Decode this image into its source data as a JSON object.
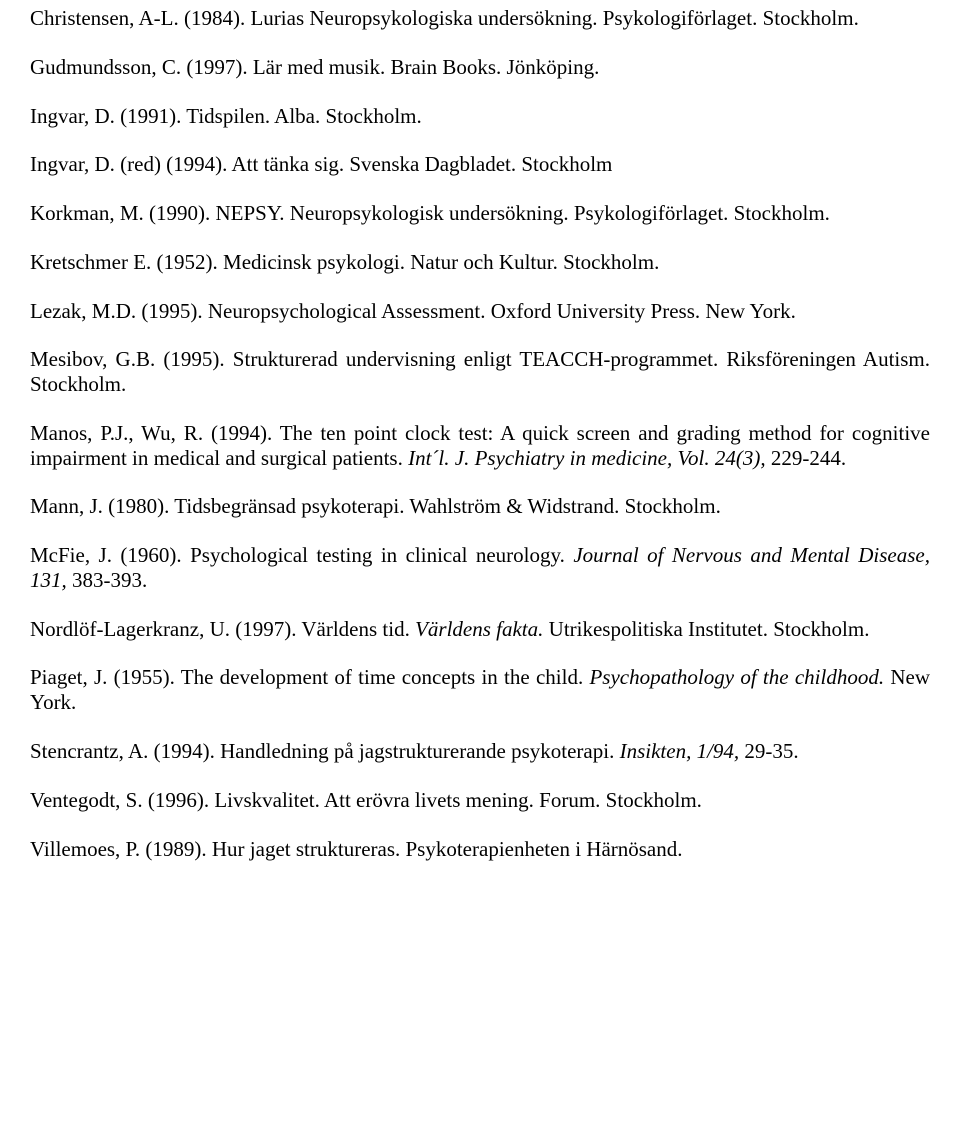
{
  "refs": [
    {
      "justify": true,
      "segs": [
        {
          "t": "Christensen, A-L. (1984). Lurias Neuropsykologiska undersökning. Psykologiförlaget. Stockholm.",
          "i": false
        }
      ]
    },
    {
      "justify": false,
      "segs": [
        {
          "t": "Gudmundsson, C. (1997). Lär med musik. Brain Books. Jönköping.",
          "i": false
        }
      ]
    },
    {
      "justify": false,
      "segs": [
        {
          "t": "Ingvar, D. (1991). Tidspilen. Alba. Stockholm.",
          "i": false
        }
      ]
    },
    {
      "justify": false,
      "segs": [
        {
          "t": "Ingvar, D. (red) (1994). Att tänka sig. Svenska Dagbladet. Stockholm",
          "i": false
        }
      ]
    },
    {
      "justify": true,
      "segs": [
        {
          "t": "Korkman, M. (1990). NEPSY. Neuropsykologisk undersökning. Psykologiförlaget. Stockholm.",
          "i": false
        }
      ]
    },
    {
      "justify": false,
      "segs": [
        {
          "t": "Kretschmer E. (1952). Medicinsk psykologi. Natur och Kultur. Stockholm.",
          "i": false
        }
      ]
    },
    {
      "justify": false,
      "segs": [
        {
          "t": "Lezak, M.D. (1995). Neuropsychological Assessment. Oxford University Press. New York.",
          "i": false
        }
      ]
    },
    {
      "justify": true,
      "segs": [
        {
          "t": "Mesibov, G.B. (1995). Strukturerad undervisning enligt TEACCH-programmet. Riksföreningen Autism. Stockholm.",
          "i": false
        }
      ]
    },
    {
      "justify": true,
      "segs": [
        {
          "t": "Manos, P.J., Wu, R. (1994). The ten point clock test: A quick screen and grading method for cognitive impairment in medical and surgical patients. ",
          "i": false
        },
        {
          "t": "Int´l. J. Psychiatry in medicine, Vol. 24(3),",
          "i": true
        },
        {
          "t": " 229-244.",
          "i": false
        }
      ]
    },
    {
      "justify": false,
      "segs": [
        {
          "t": "Mann, J. (1980). Tidsbegränsad psykoterapi. Wahlström & Widstrand. Stockholm.",
          "i": false
        }
      ]
    },
    {
      "justify": true,
      "segs": [
        {
          "t": "McFie, J. (1960). Psychological testing in clinical neurology. ",
          "i": false
        },
        {
          "t": "Journal of Nervous and Mental Disease, 131,",
          "i": true
        },
        {
          "t": " 383-393.",
          "i": false
        }
      ]
    },
    {
      "justify": true,
      "segs": [
        {
          "t": "Nordlöf-Lagerkranz, U. (1997). Världens tid. ",
          "i": false
        },
        {
          "t": "Världens fakta.",
          "i": true
        },
        {
          "t": " Utrikespolitiska Institutet. Stockholm.",
          "i": false
        }
      ]
    },
    {
      "justify": true,
      "segs": [
        {
          "t": "Piaget, J. (1955). The development of time concepts in the child. ",
          "i": false
        },
        {
          "t": "Psychopathology of the childhood.",
          "i": true
        },
        {
          "t": " New York.",
          "i": false
        }
      ]
    },
    {
      "justify": false,
      "segs": [
        {
          "t": "Stencrantz, A. (1994). Handledning på jagstrukturerande psykoterapi. ",
          "i": false
        },
        {
          "t": "Insikten, 1/94,",
          "i": true
        },
        {
          "t": " 29-35.",
          "i": false
        }
      ]
    },
    {
      "justify": false,
      "segs": [
        {
          "t": "Ventegodt, S. (1996). Livskvalitet. Att erövra livets mening. Forum. Stockholm.",
          "i": false
        }
      ]
    },
    {
      "justify": false,
      "segs": [
        {
          "t": "Villemoes, P. (1989). Hur jaget struktureras. Psykoterapienheten i Härnösand.",
          "i": false
        }
      ]
    }
  ]
}
